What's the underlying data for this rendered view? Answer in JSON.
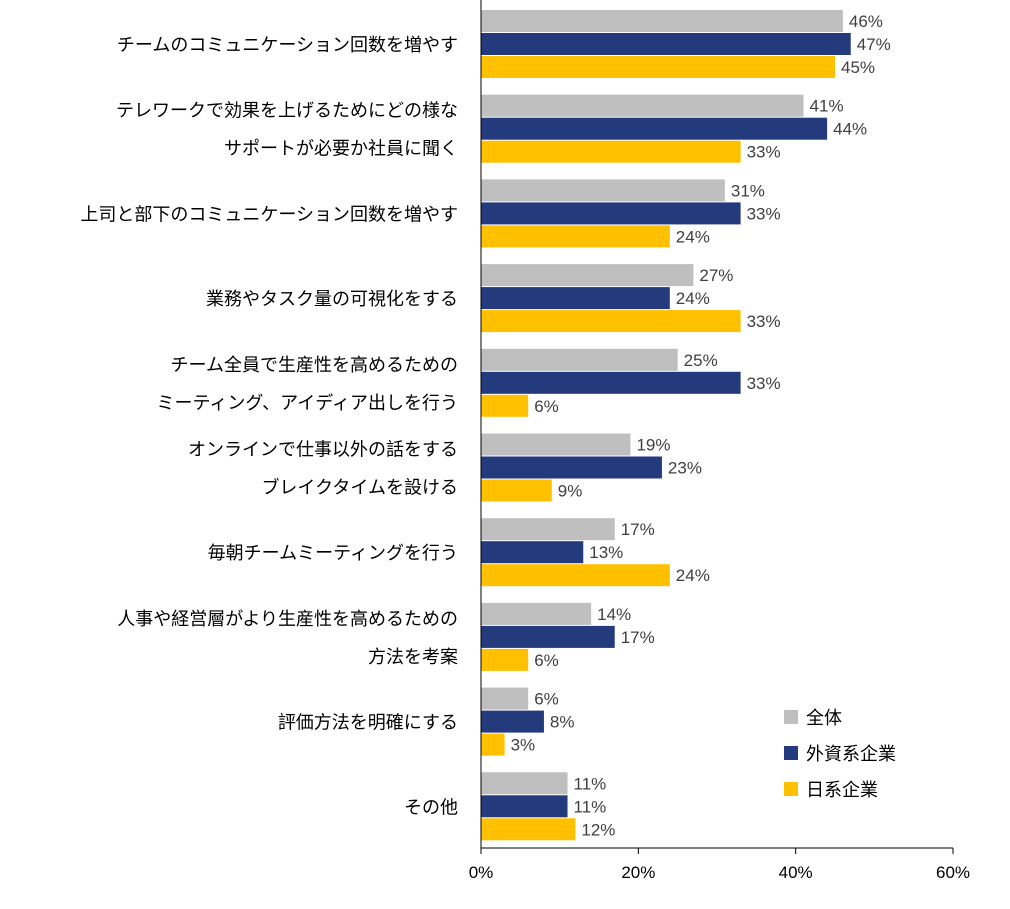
{
  "chart_data": {
    "type": "bar",
    "orientation": "horizontal",
    "categories": [
      [
        "チームのコミュニケーション回数を増やす"
      ],
      [
        "テレワークで効果を上げるためにどの様な",
        "サポートが必要か社員に聞く"
      ],
      [
        "上司と部下のコミュニケーション回数を増やす"
      ],
      [
        "業務やタスク量の可視化をする"
      ],
      [
        "チーム全員で生産性を高めるための",
        "ミーティング、アイディア出しを行う"
      ],
      [
        "オンラインで仕事以外の話をする",
        "ブレイクタイムを設ける"
      ],
      [
        "毎朝チームミーティングを行う"
      ],
      [
        "人事や経営層がより生産性を高めるための",
        "方法を考案"
      ],
      [
        "評価方法を明確にする"
      ],
      [
        "その他"
      ]
    ],
    "series": [
      {
        "name": "全体",
        "color": "#bfbfbf",
        "values": [
          46,
          41,
          31,
          27,
          25,
          19,
          17,
          14,
          6,
          11
        ]
      },
      {
        "name": "外資系企業",
        "color": "#233a7d",
        "values": [
          47,
          44,
          33,
          24,
          33,
          23,
          13,
          17,
          8,
          11
        ]
      },
      {
        "name": "日系企業",
        "color": "#ffc000",
        "values": [
          45,
          33,
          24,
          33,
          6,
          9,
          24,
          6,
          3,
          12
        ]
      }
    ],
    "value_suffix": "%",
    "xlim": [
      0,
      60
    ],
    "xticks": [
      0,
      20,
      40,
      60
    ],
    "xtick_labels": [
      "0%",
      "20%",
      "40%",
      "60%"
    ],
    "legend_position": "bottom-right",
    "grid": false
  }
}
